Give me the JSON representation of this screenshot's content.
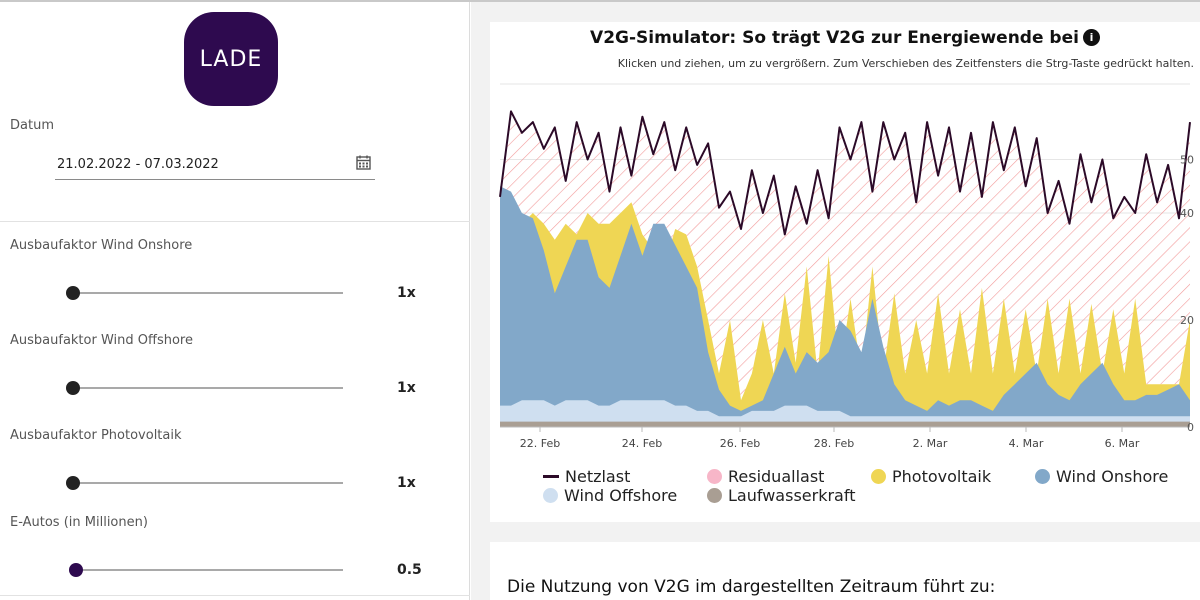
{
  "logo": {
    "text": "LADE"
  },
  "sidebar": {
    "date_label": "Datum",
    "date_value": "21.02.2022 - 07.03.2022",
    "sliders": [
      {
        "label": "Ausbaufaktor Wind Onshore",
        "value_text": "1x",
        "level": 0
      },
      {
        "label": "Ausbaufaktor Wind Offshore",
        "value_text": "1x",
        "level": 0
      },
      {
        "label": "Ausbaufaktor Photovoltaik",
        "value_text": "1x",
        "level": 0
      },
      {
        "label": "E-Autos (in Millionen)",
        "value_text": "0.5",
        "level": 0.01
      }
    ]
  },
  "chart": {
    "title": "V2G-Simulator: So trägt V2G zur Energiewende bei",
    "subtitle": "Klicken und ziehen, um zu vergrößern. Zum Verschieben des Zeitfensters die Strg-Taste gedrückt halten.",
    "legend": [
      {
        "name": "Netzlast",
        "color": "#2c0a28",
        "shape": "line"
      },
      {
        "name": "Residuallast",
        "color": "#f7b6c8",
        "shape": "dot"
      },
      {
        "name": "Photovoltaik",
        "color": "#efd654",
        "shape": "dot"
      },
      {
        "name": "Wind Onshore",
        "color": "#82a8c9",
        "shape": "dot"
      },
      {
        "name": "Wind Offshore",
        "color": "#cfdff0",
        "shape": "dot"
      },
      {
        "name": "Laufwasserkraft",
        "color": "#a99e93",
        "shape": "dot"
      }
    ]
  },
  "chart_data": {
    "type": "area",
    "x_start": "2022-02-21",
    "x_end": "2022-03-07",
    "x_ticks": [
      "22. Feb",
      "24. Feb",
      "26. Feb",
      "28. Feb",
      "2. Mar",
      "4. Mar",
      "6. Mar"
    ],
    "y_ticks": [
      "0",
      "20",
      "40",
      "50"
    ],
    "ylim": [
      0,
      60
    ],
    "grid": true,
    "legend_placement": "bottom",
    "series": [
      {
        "name": "Netzlast",
        "type": "line",
        "values": [
          43,
          59,
          55,
          57,
          52,
          56,
          46,
          57,
          50,
          55,
          44,
          56,
          47,
          58,
          51,
          57,
          48,
          56,
          49,
          53,
          41,
          44,
          37,
          48,
          40,
          47,
          36,
          45,
          38,
          48,
          39,
          56,
          50,
          57,
          44,
          57,
          50,
          55,
          42,
          57,
          47,
          56,
          44,
          55,
          43,
          57,
          48,
          56,
          45,
          54,
          40,
          46,
          38,
          51,
          42,
          50,
          39,
          43,
          40,
          51,
          42,
          49,
          39,
          57
        ]
      },
      {
        "name": "Photovoltaik",
        "type": "area",
        "values": [
          44,
          43,
          38,
          40,
          38,
          35,
          38,
          36,
          40,
          38,
          38,
          40,
          42,
          36,
          33,
          30,
          37,
          36,
          30,
          20,
          10,
          20,
          5,
          10,
          20,
          10,
          25,
          12,
          30,
          10,
          32,
          10,
          24,
          10,
          30,
          10,
          25,
          10,
          20,
          10,
          25,
          10,
          22,
          10,
          26,
          10,
          24,
          10,
          22,
          10,
          24,
          10,
          24,
          10,
          23,
          10,
          22,
          10,
          24,
          8,
          8,
          8,
          8,
          20
        ]
      },
      {
        "name": "Wind Onshore",
        "type": "area",
        "values": [
          45,
          44,
          40,
          39,
          33,
          25,
          30,
          35,
          35,
          28,
          26,
          32,
          38,
          32,
          38,
          38,
          34,
          30,
          26,
          14,
          7,
          4,
          3,
          4,
          5,
          10,
          15,
          10,
          14,
          12,
          14,
          20,
          18,
          14,
          24,
          15,
          8,
          5,
          4,
          3,
          5,
          4,
          5,
          5,
          4,
          3,
          6,
          8,
          10,
          12,
          8,
          6,
          5,
          8,
          10,
          12,
          8,
          5,
          5,
          6,
          6,
          7,
          8,
          5
        ]
      },
      {
        "name": "Wind Offshore",
        "type": "area",
        "values": [
          4,
          4,
          5,
          5,
          5,
          4,
          5,
          5,
          5,
          4,
          4,
          5,
          5,
          5,
          5,
          5,
          4,
          4,
          3,
          3,
          2,
          2,
          2,
          3,
          3,
          3,
          4,
          4,
          4,
          3,
          3,
          3,
          2,
          2,
          2,
          2,
          2,
          2,
          2,
          2,
          2,
          2,
          2,
          2,
          2,
          2,
          2,
          2,
          2,
          2,
          2,
          2,
          2,
          2,
          2,
          2,
          2,
          2,
          2,
          2,
          2,
          2,
          2,
          2
        ]
      },
      {
        "name": "Laufwasserkraft",
        "type": "area",
        "values": [
          1,
          1,
          1,
          1,
          1,
          1,
          1,
          1,
          1,
          1,
          1,
          1,
          1,
          1,
          1,
          1,
          1,
          1,
          1,
          1,
          1,
          1,
          1,
          1,
          1,
          1,
          1,
          1,
          1,
          1,
          1,
          1,
          1,
          1,
          1,
          1,
          1,
          1,
          1,
          1,
          1,
          1,
          1,
          1,
          1,
          1,
          1,
          1,
          1,
          1,
          1,
          1,
          1,
          1,
          1,
          1,
          1,
          1,
          1,
          1,
          1,
          1,
          1,
          1
        ]
      }
    ]
  },
  "result": {
    "heading": "Die Nutzung von V2G im dargestellten Zeitraum führt zu:"
  }
}
